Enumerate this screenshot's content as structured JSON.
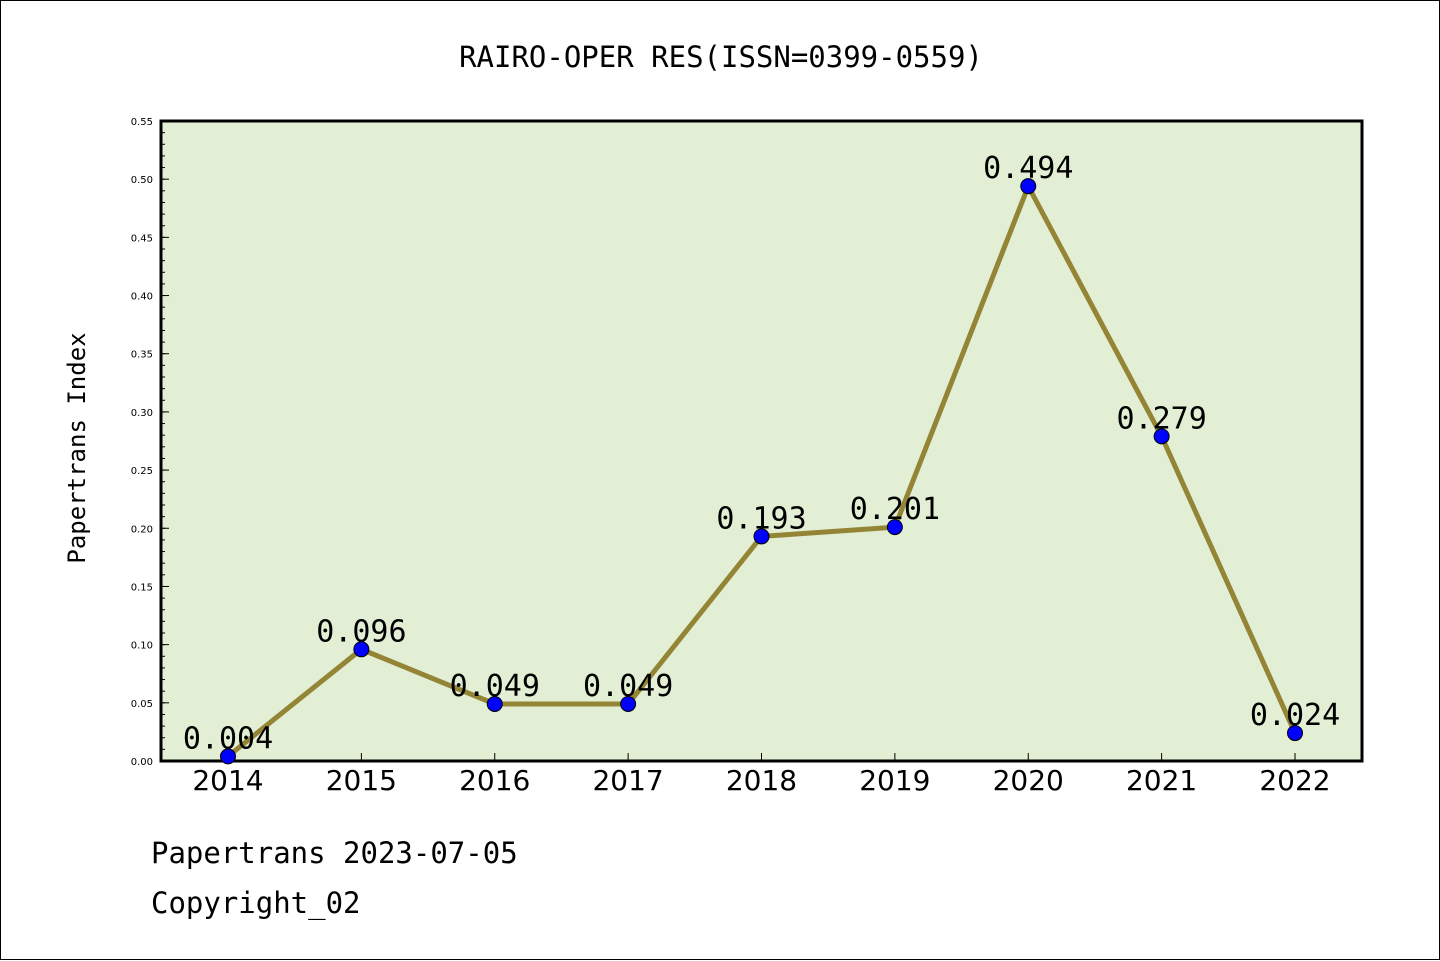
{
  "chart_data": {
    "type": "line",
    "title": "RAIRO-OPER RES(ISSN=0399-0559)",
    "xlabel": "",
    "ylabel": "Papertrans Index",
    "categories": [
      "2014",
      "2015",
      "2016",
      "2017",
      "2018",
      "2019",
      "2020",
      "2021",
      "2022"
    ],
    "values": [
      0.004,
      0.096,
      0.049,
      0.049,
      0.193,
      0.201,
      0.494,
      0.279,
      0.024
    ],
    "data_labels": [
      "0.004",
      "0.096",
      "0.049",
      "0.049",
      "0.193",
      "0.201",
      "0.494",
      "0.279",
      "0.024"
    ],
    "ylim": [
      0,
      0.55
    ],
    "yticks": [
      "0.00",
      "0.05",
      "0.10",
      "0.15",
      "0.20",
      "0.25",
      "0.30",
      "0.35",
      "0.40",
      "0.45",
      "0.50",
      "0.55"
    ],
    "grid": false,
    "legend": "none",
    "colors": {
      "line": "#948435",
      "marker": "#0000ff",
      "plot_background": "#e2efd5"
    }
  },
  "footer": {
    "line1": "Papertrans 2023-07-05",
    "line2": "Copyright_02"
  }
}
